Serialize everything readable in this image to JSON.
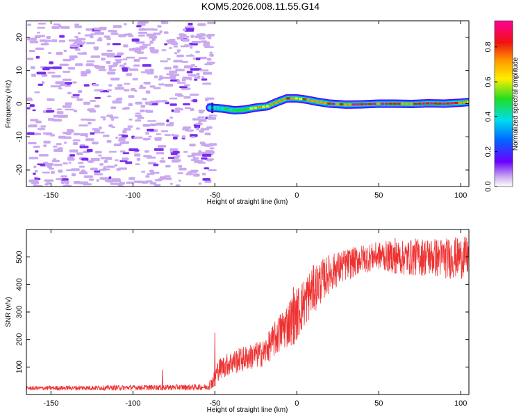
{
  "figure_title": "KOM5.2026.008.11.55.G14",
  "colors": {
    "background": "#ffffff",
    "snr_line": "#ee3333",
    "noise_pixels": "#c9a8f0",
    "colormap": [
      "#ffffff",
      "#6a00ff",
      "#0066ff",
      "#00ddee",
      "#22dd22",
      "#ffee00",
      "#ff9900",
      "#ee1111",
      "#ff0099"
    ]
  },
  "chart_data": [
    {
      "type": "heatmap",
      "title": "",
      "xlabel": "Height of straight line (km)",
      "ylabel": "Frequency (Hz)",
      "xlim": [
        -165,
        105
      ],
      "ylim": [
        -25,
        25
      ],
      "xticks": [
        -150,
        -100,
        -50,
        0,
        50,
        100
      ],
      "yticks": [
        -20,
        -10,
        0,
        10,
        20
      ],
      "colorbar": {
        "label": "Normalized spectral amplitude",
        "range": [
          0,
          0.95
        ],
        "ticks": [
          "0.0",
          "0.2",
          "0.4",
          "0.6",
          "0.8"
        ],
        "tick_values": [
          0.0,
          0.2,
          0.4,
          0.6,
          0.8
        ]
      },
      "noise_region_x": [
        -165,
        -53
      ],
      "signal_trace": {
        "x": [
          -53,
          -45,
          -38,
          -32,
          -25,
          -18,
          -12,
          -6,
          0,
          6,
          12,
          20,
          30,
          40,
          50,
          60,
          70,
          80,
          90,
          100,
          105
        ],
        "frequency": [
          -1.2,
          -1.5,
          -2.0,
          -1.8,
          -1.2,
          -0.8,
          0.5,
          1.6,
          1.6,
          1.2,
          0.6,
          0.0,
          -0.3,
          -0.2,
          0.0,
          0.0,
          -0.1,
          0.1,
          0.0,
          0.3,
          0.5
        ],
        "amplitude": [
          0.35,
          0.4,
          0.45,
          0.5,
          0.6,
          0.6,
          0.7,
          0.8,
          0.7,
          0.75,
          0.8,
          0.85,
          0.85,
          0.9,
          0.9,
          0.9,
          0.85,
          0.9,
          0.9,
          0.85,
          0.6
        ]
      }
    },
    {
      "type": "line",
      "title": "",
      "xlabel": "Height of straight line (km)",
      "ylabel": "SNR (v/v)",
      "xlim": [
        -165,
        105
      ],
      "ylim": [
        0,
        600
      ],
      "xticks": [
        -150,
        -100,
        -50,
        0,
        50,
        100
      ],
      "yticks": [
        100,
        200,
        300,
        400,
        500
      ],
      "series": [
        {
          "name": "SNR",
          "envelope": {
            "x": [
              -165,
              -120,
              -80,
              -55,
              -51,
              -48,
              -40,
              -30,
              -20,
              -10,
              0,
              10,
              20,
              30,
              40,
              50,
              60,
              65,
              75,
              90,
              105
            ],
            "lo": [
              15,
              15,
              15,
              15,
              20,
              50,
              70,
              85,
              100,
              150,
              190,
              290,
              370,
              410,
              440,
              450,
              440,
              430,
              430,
              420,
              420
            ],
            "hi": [
              30,
              33,
              36,
              38,
              75,
              130,
              160,
              180,
              200,
              300,
              390,
              470,
              510,
              530,
              545,
              555,
              560,
              560,
              570,
              570,
              575
            ]
          },
          "spikes": [
            {
              "x": -82,
              "y": 90
            },
            {
              "x": -50,
              "y": 225
            },
            {
              "x": -2,
              "y": 390
            },
            {
              "x": 60,
              "y": 570
            }
          ]
        }
      ]
    }
  ]
}
